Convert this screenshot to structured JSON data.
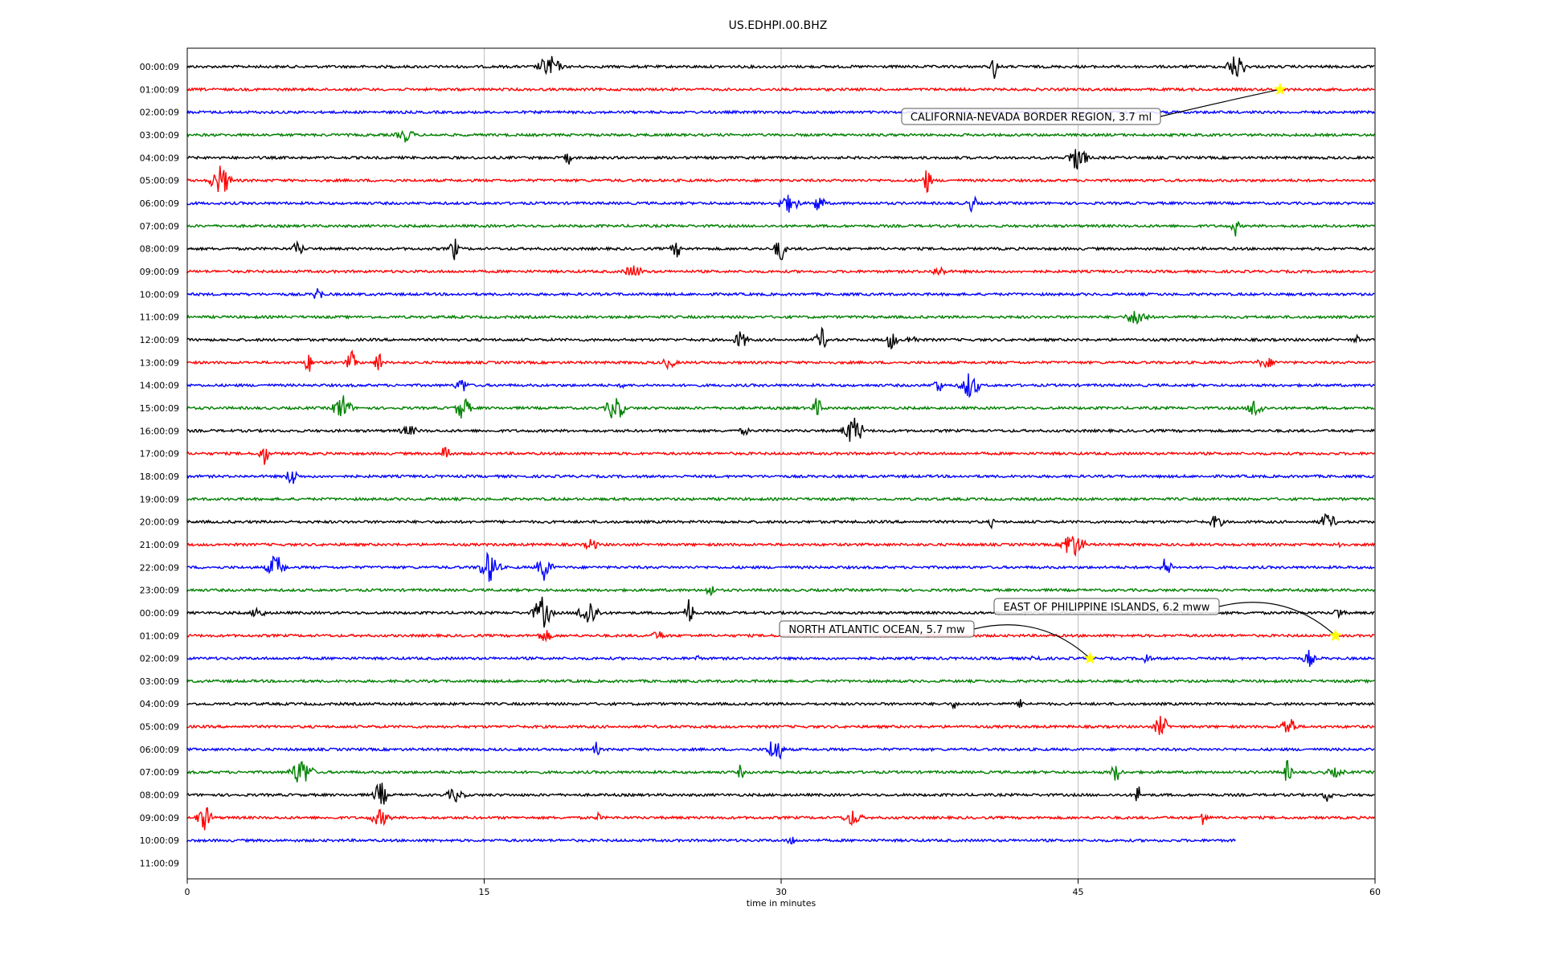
{
  "chart_data": {
    "type": "line",
    "title": "US.EDHPI.00.BHZ",
    "xlabel": "time in minutes",
    "ylabel": "",
    "xlim": [
      0,
      60
    ],
    "xticks": [
      0,
      15,
      30,
      45,
      60
    ],
    "grid": "vertical",
    "trace_colors": [
      "#000000",
      "#ff0000",
      "#0000ff",
      "#008000"
    ],
    "row_labels": [
      "00:00:09",
      "01:00:09",
      "02:00:09",
      "03:00:09",
      "04:00:09",
      "05:00:09",
      "06:00:09",
      "07:00:09",
      "08:00:09",
      "09:00:09",
      "10:00:09",
      "11:00:09",
      "12:00:09",
      "13:00:09",
      "14:00:09",
      "15:00:09",
      "16:00:09",
      "17:00:09",
      "18:00:09",
      "19:00:09",
      "20:00:09",
      "21:00:09",
      "22:00:09",
      "23:00:09",
      "00:00:09",
      "01:00:09",
      "02:00:09",
      "03:00:09",
      "04:00:09",
      "05:00:09",
      "06:00:09",
      "07:00:09",
      "08:00:09",
      "09:00:09",
      "10:00:09",
      "11:00:09"
    ],
    "last_trace_end_minute": 53,
    "events": [
      {
        "label": "CALIFORNIA-NEVADA BORDER REGION, 3.7 ml",
        "row": 1,
        "minute": 55.2
      },
      {
        "label": "EAST OF PHILIPPINE ISLANDS, 6.2 mww",
        "row": 25,
        "minute": 58.0
      },
      {
        "label": "NORTH ATLANTIC OCEAN, 5.7 mw",
        "row": 26,
        "minute": 45.6
      }
    ],
    "event_marker_color": "#ffff00"
  }
}
